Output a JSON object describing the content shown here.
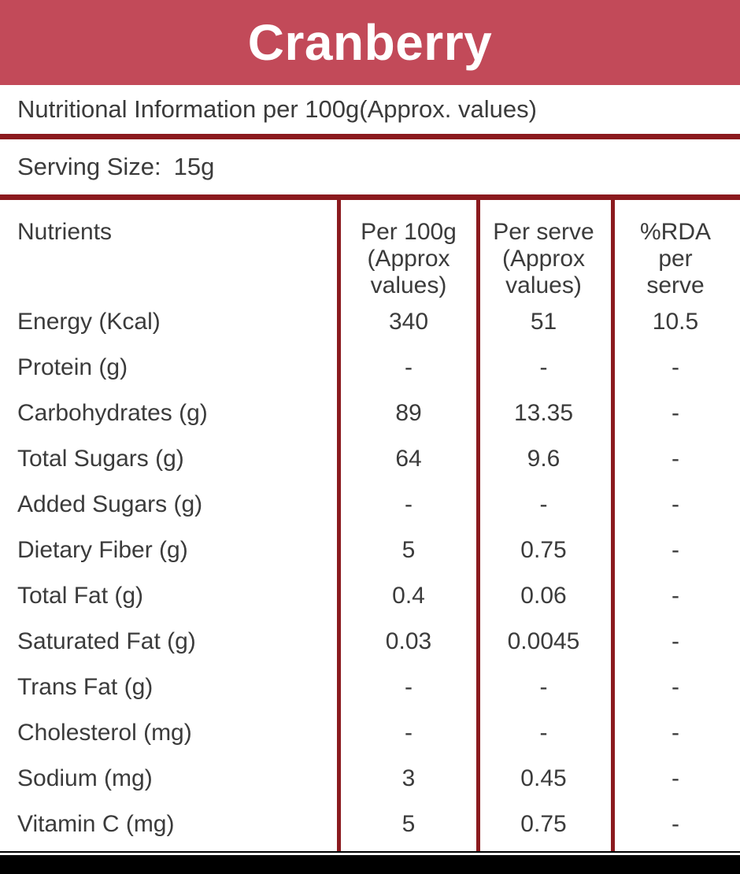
{
  "title": "Cranberry",
  "colors": {
    "banner": "#c24a59",
    "rule": "#8b1a1e",
    "text": "#3b3b3b",
    "footer": "#000000"
  },
  "info_line": "Nutritional Information per 100g(Approx. values)",
  "serving": {
    "label": "Serving Size:",
    "value": "15g"
  },
  "table": {
    "header": {
      "nutrients": "Nutrients",
      "per_100g_lines": [
        "Per 100g",
        "(Approx",
        "values)"
      ],
      "per_serve_lines": [
        "Per serve",
        "(Approx",
        "values)"
      ],
      "rda_lines": [
        "%RDA",
        "per",
        "serve"
      ]
    },
    "rows": [
      {
        "name": "Energy (Kcal)",
        "per_100g": "340",
        "per_serve": "51",
        "rda": "10.5"
      },
      {
        "name": "Protein (g)",
        "per_100g": "-",
        "per_serve": "-",
        "rda": "-"
      },
      {
        "name": "Carbohydrates (g)",
        "per_100g": "89",
        "per_serve": "13.35",
        "rda": "-"
      },
      {
        "name": "Total Sugars (g)",
        "per_100g": "64",
        "per_serve": "9.6",
        "rda": "-"
      },
      {
        "name": "Added Sugars (g)",
        "per_100g": "-",
        "per_serve": "-",
        "rda": "-"
      },
      {
        "name": "Dietary Fiber (g)",
        "per_100g": "5",
        "per_serve": "0.75",
        "rda": "-"
      },
      {
        "name": "Total Fat (g)",
        "per_100g": "0.4",
        "per_serve": "0.06",
        "rda": "-"
      },
      {
        "name": "Saturated Fat (g)",
        "per_100g": "0.03",
        "per_serve": "0.0045",
        "rda": "-"
      },
      {
        "name": "Trans Fat (g)",
        "per_100g": "-",
        "per_serve": "-",
        "rda": "-"
      },
      {
        "name": "Cholesterol (mg)",
        "per_100g": "-",
        "per_serve": "-",
        "rda": "-"
      },
      {
        "name": "Sodium (mg)",
        "per_100g": "3",
        "per_serve": "0.45",
        "rda": "-"
      },
      {
        "name": "Vitamin C (mg)",
        "per_100g": "5",
        "per_serve": "0.75",
        "rda": "-"
      }
    ]
  }
}
